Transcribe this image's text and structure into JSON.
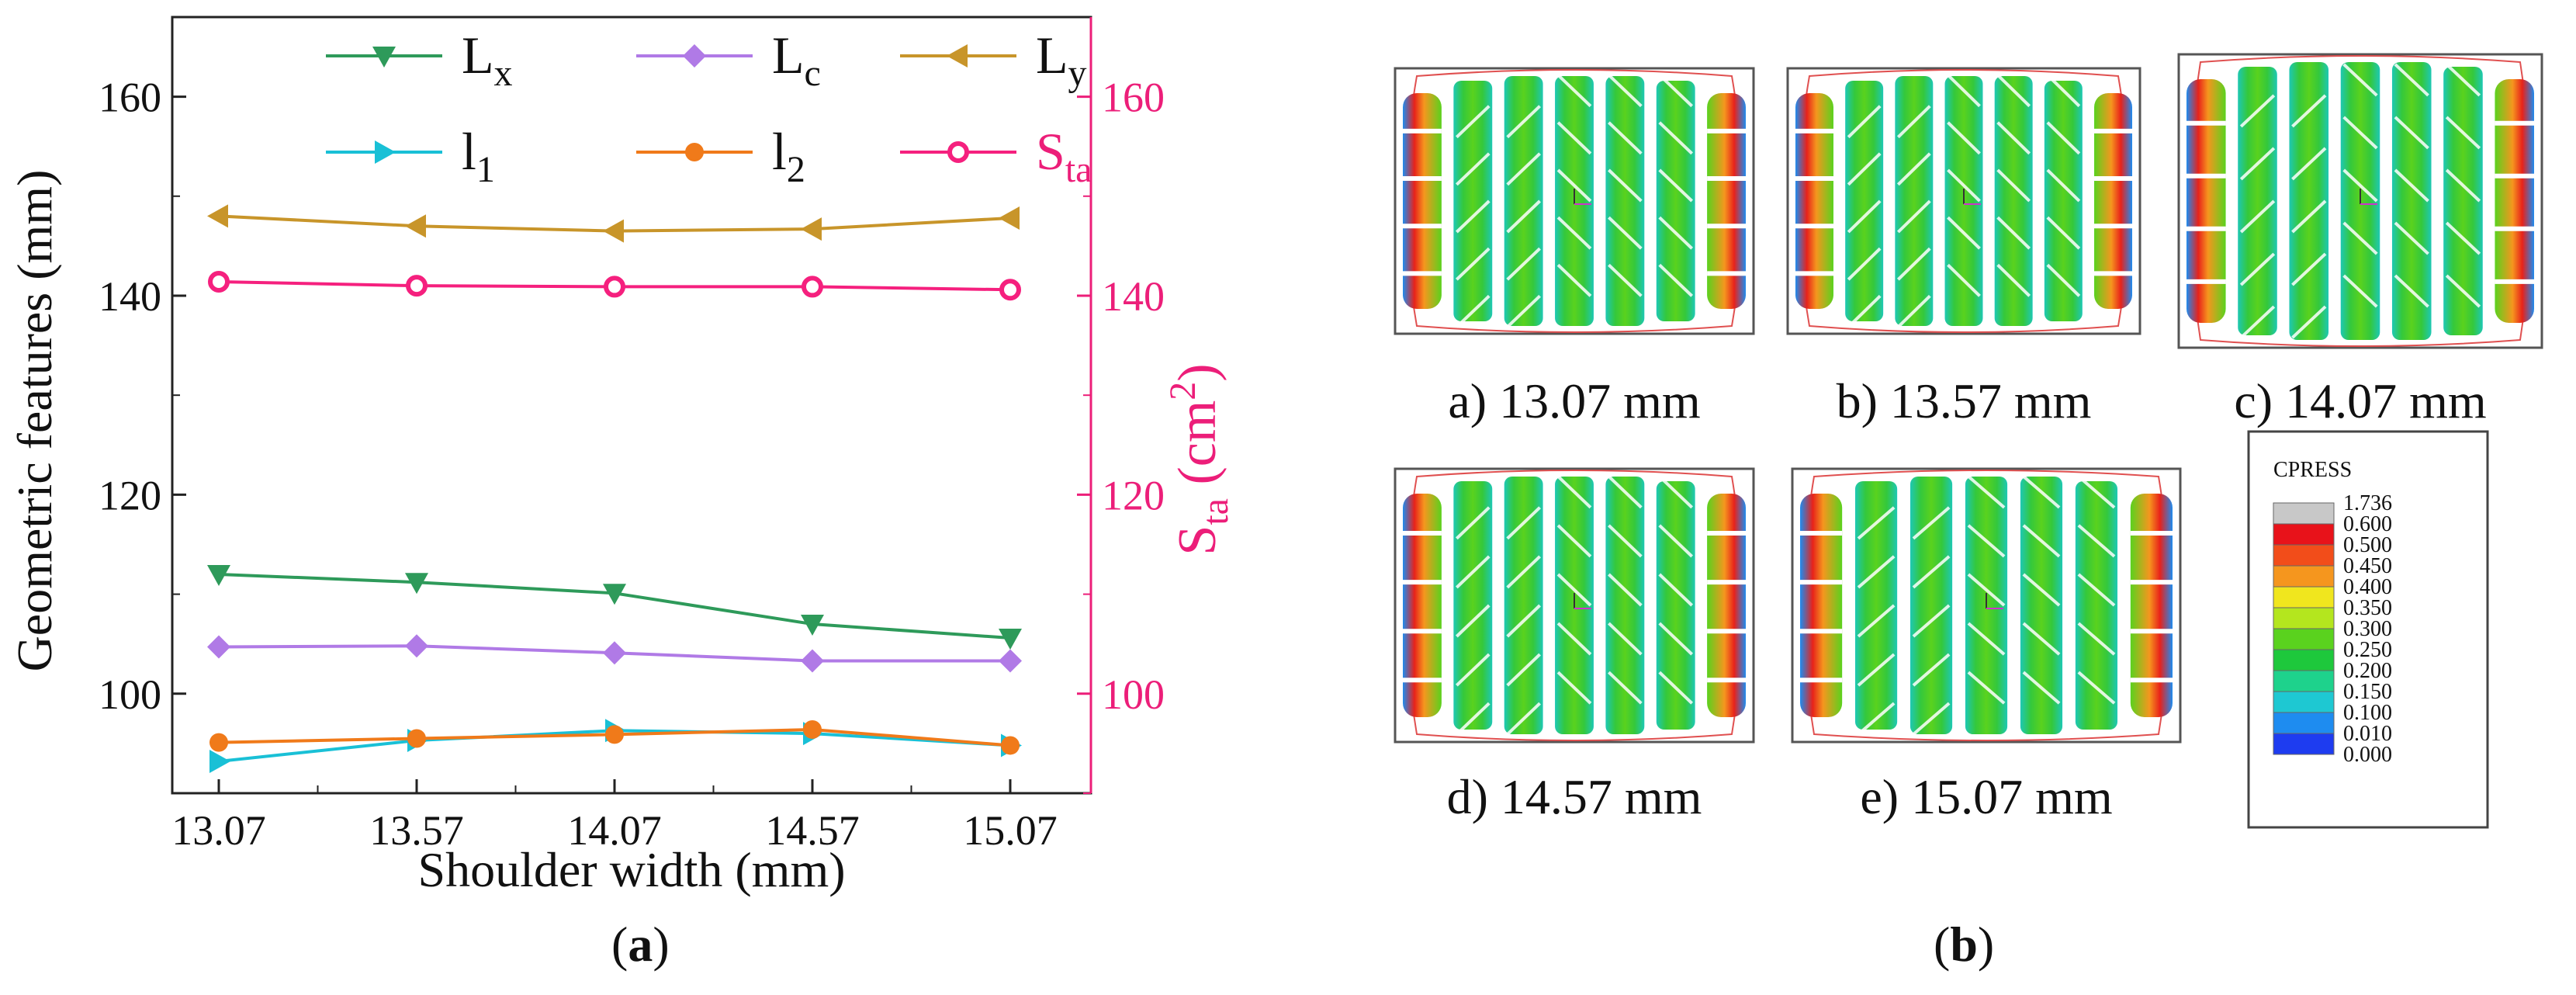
{
  "chart_data": {
    "type": "line",
    "panel_label": "a",
    "xlabel": "Shoulder width (mm)",
    "ylabel": "Geometric features (mm)",
    "y2label": {
      "main": "S",
      "sub": "ta",
      "unit_prefix": " (cm",
      "unit_sup": "2",
      "unit_suffix": ")"
    },
    "categories": [
      "13.07",
      "13.57",
      "14.07",
      "14.57",
      "15.07"
    ],
    "ylim": [
      90,
      168
    ],
    "y2lim": [
      90,
      168
    ],
    "yticks": [
      100,
      120,
      140,
      160
    ],
    "y2ticks": [
      100,
      120,
      140,
      160
    ],
    "series": [
      {
        "name": "L",
        "sub": "x",
        "axis": "left",
        "marker": "triangle-down",
        "color": "#2e9a5a",
        "values": [
          112.0,
          111.2,
          110.1,
          107.0,
          105.6
        ]
      },
      {
        "name": "L",
        "sub": "c",
        "axis": "left",
        "marker": "diamond",
        "color": "#b07ae6",
        "values": [
          104.7,
          104.8,
          104.1,
          103.3,
          103.3
        ]
      },
      {
        "name": "L",
        "sub": "y",
        "axis": "left",
        "marker": "triangle-left",
        "color": "#c8952a",
        "values": [
          148.0,
          147.0,
          146.5,
          146.7,
          147.8
        ]
      },
      {
        "name": "l",
        "sub": "1",
        "axis": "left",
        "marker": "triangle-right",
        "color": "#19c0d6",
        "values": [
          93.2,
          95.3,
          96.3,
          96.0,
          94.8
        ]
      },
      {
        "name": "l",
        "sub": "2",
        "axis": "left",
        "marker": "circle",
        "color": "#f07a1a",
        "values": [
          95.1,
          95.5,
          95.9,
          96.4,
          94.8
        ]
      },
      {
        "name": "S",
        "sub": "ta",
        "axis": "right",
        "marker": "circle-open",
        "color": "#f5207e",
        "values": [
          141.4,
          141.0,
          140.9,
          140.9,
          140.6
        ]
      }
    ]
  },
  "panel_b": {
    "panel_label": "b",
    "images": [
      {
        "label": "a) 13.07 mm"
      },
      {
        "label": "b) 13.57 mm"
      },
      {
        "label": "c) 14.07 mm"
      },
      {
        "label": "d) 14.57 mm"
      },
      {
        "label": "e) 15.07 mm"
      }
    ],
    "legend": {
      "title": "CPRESS",
      "entries": [
        {
          "value": "1.736",
          "color": "#c8c8c8"
        },
        {
          "value": "0.600",
          "color": "#e8121a"
        },
        {
          "value": "0.500",
          "color": "#f24d1a"
        },
        {
          "value": "0.450",
          "color": "#f5961e"
        },
        {
          "value": "0.400",
          "color": "#f0e61e"
        },
        {
          "value": "0.350",
          "color": "#b4e61e"
        },
        {
          "value": "0.300",
          "color": "#5ad21e"
        },
        {
          "value": "0.250",
          "color": "#1ec83c"
        },
        {
          "value": "0.200",
          "color": "#1ed28c"
        },
        {
          "value": "0.150",
          "color": "#1ec8d2"
        },
        {
          "value": "0.100",
          "color": "#1e8cf0"
        },
        {
          "value": "0.010",
          "color": "#1e3cf0"
        },
        {
          "value": "0.000",
          "color": "#1414c8"
        }
      ]
    }
  }
}
